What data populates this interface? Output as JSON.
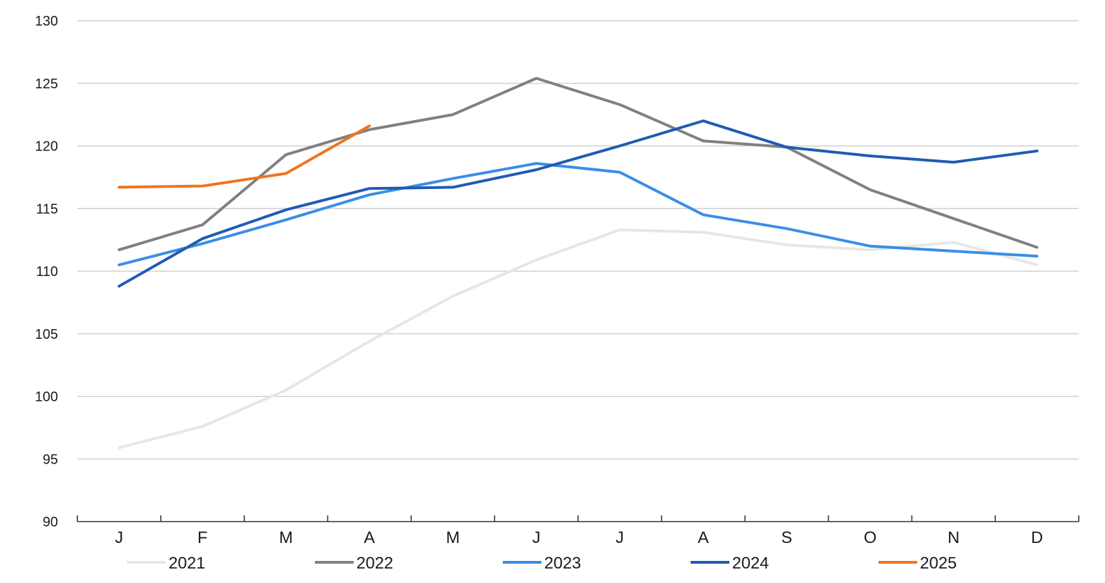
{
  "chart_data": {
    "type": "line",
    "categories": [
      "J",
      "F",
      "M",
      "A",
      "M",
      "J",
      "J",
      "A",
      "S",
      "O",
      "N",
      "D"
    ],
    "ylim": [
      90,
      130
    ],
    "yticks": [
      90,
      95,
      100,
      105,
      110,
      115,
      120,
      125,
      130
    ],
    "grid": true,
    "legend_position": "bottom",
    "series": [
      {
        "name": "2021",
        "color": "#e6e6e6",
        "values": [
          95.9,
          97.6,
          100.5,
          104.4,
          108.0,
          110.9,
          113.3,
          113.1,
          112.1,
          111.7,
          112.3,
          110.5
        ]
      },
      {
        "name": "2022",
        "color": "#808080",
        "values": [
          111.7,
          113.7,
          119.3,
          121.3,
          122.5,
          125.4,
          123.3,
          120.4,
          119.9,
          116.5,
          114.2,
          111.9
        ]
      },
      {
        "name": "2023",
        "color": "#3a8ee6",
        "values": [
          110.5,
          112.2,
          114.1,
          116.1,
          117.4,
          118.6,
          117.9,
          114.5,
          113.4,
          112.0,
          111.6,
          111.2
        ]
      },
      {
        "name": "2024",
        "color": "#1f5bb5",
        "values": [
          108.8,
          112.6,
          114.9,
          116.6,
          116.7,
          118.1,
          120.0,
          122.0,
          119.9,
          119.2,
          118.7,
          119.6
        ]
      },
      {
        "name": "2025",
        "color": "#f07420",
        "values": [
          116.7,
          116.8,
          117.8,
          121.6,
          null,
          null,
          null,
          null,
          null,
          null,
          null,
          null
        ]
      }
    ]
  }
}
